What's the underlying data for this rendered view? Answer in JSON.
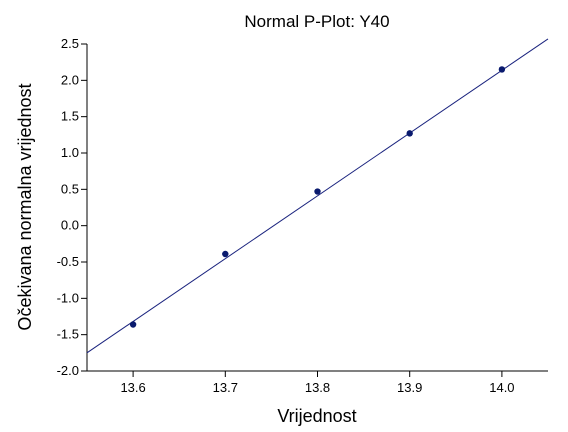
{
  "chart_data": {
    "type": "scatter",
    "title": "Normal P-Plot: Y40",
    "xlabel": "Vrijednost",
    "ylabel": "Očekivana normalna vrijednost",
    "xlim": [
      13.55,
      14.05
    ],
    "ylim": [
      -2.0,
      2.5
    ],
    "xticks": [
      13.6,
      13.7,
      13.8,
      13.9,
      14.0
    ],
    "xtick_labels": [
      "13.6",
      "13.7",
      "13.8",
      "13.9",
      "14.0"
    ],
    "yticks": [
      -2.0,
      -1.5,
      -1.0,
      -0.5,
      0.0,
      0.5,
      1.0,
      1.5,
      2.0,
      2.5
    ],
    "ytick_labels": [
      "-2.0",
      "-1.5",
      "-1.0",
      "-0.5",
      "0.0",
      "0.5",
      "1.0",
      "1.5",
      "2.0",
      "2.5"
    ],
    "grid": false,
    "series": [
      {
        "x": [
          13.6,
          13.7,
          13.8,
          13.9,
          14.0
        ],
        "y": [
          -1.36,
          -0.39,
          0.47,
          1.27,
          2.15
        ]
      }
    ],
    "reference_line": {
      "x": [
        13.55,
        14.05
      ],
      "y": [
        -1.75,
        2.57
      ]
    },
    "colors": {
      "points": "#0a1a6e",
      "line": "#1a237e",
      "axes": "#000000"
    }
  }
}
